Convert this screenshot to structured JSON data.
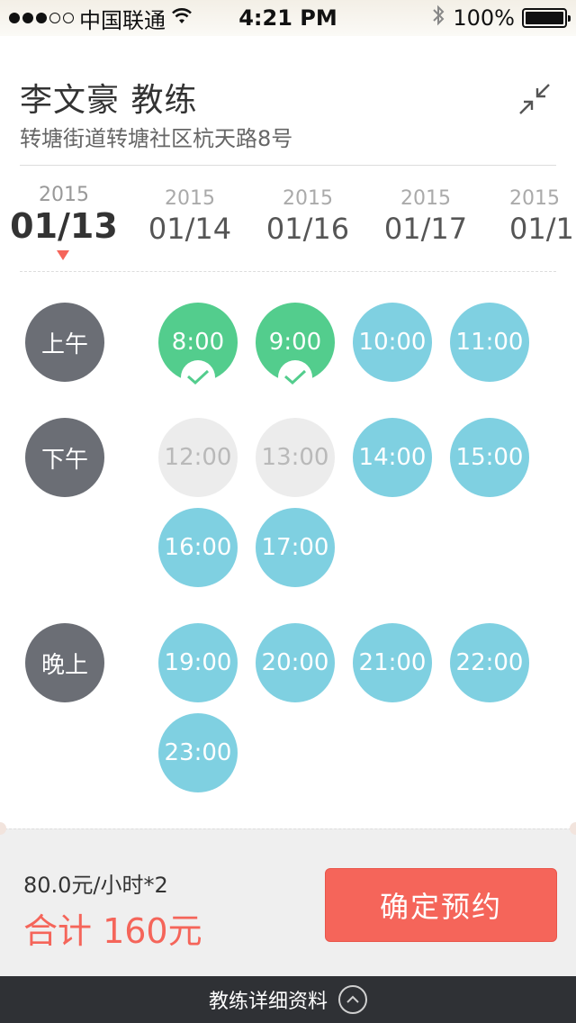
{
  "status_bar": {
    "carrier": "中国联通",
    "signal_filled": 3,
    "signal_empty": 2,
    "time": "4:21 PM",
    "battery": "100%"
  },
  "header": {
    "coach_name": "李文豪 教练",
    "address": "转塘街道转塘社区杭天路8号"
  },
  "dates": [
    {
      "year": "2015",
      "md": "01/13",
      "selected": true
    },
    {
      "year": "2015",
      "md": "01/14"
    },
    {
      "year": "2015",
      "md": "01/16"
    },
    {
      "year": "2015",
      "md": "01/17"
    },
    {
      "year": "2015",
      "md": "01/1"
    }
  ],
  "periods": {
    "morning": "上午",
    "afternoon": "下午",
    "evening": "晚上"
  },
  "slots": {
    "morning": [
      {
        "time": "8:00",
        "state": "selected"
      },
      {
        "time": "9:00",
        "state": "selected"
      },
      {
        "time": "10:00",
        "state": "available"
      },
      {
        "time": "11:00",
        "state": "available"
      }
    ],
    "afternoon": [
      {
        "time": "12:00",
        "state": "disabled"
      },
      {
        "time": "13:00",
        "state": "disabled"
      },
      {
        "time": "14:00",
        "state": "available"
      },
      {
        "time": "15:00",
        "state": "available"
      },
      {
        "time": "16:00",
        "state": "available"
      },
      {
        "time": "17:00",
        "state": "available"
      }
    ],
    "evening": [
      {
        "time": "19:00",
        "state": "available"
      },
      {
        "time": "20:00",
        "state": "available"
      },
      {
        "time": "21:00",
        "state": "available"
      },
      {
        "time": "22:00",
        "state": "available"
      },
      {
        "time": "23:00",
        "state": "available"
      }
    ]
  },
  "summary": {
    "price_detail": "80.0元/小时*2",
    "total": "合计 160元",
    "confirm_label": "确定预约"
  },
  "bottom_bar": {
    "label": "教练详细资料"
  },
  "colors": {
    "accent_red": "#f5655a",
    "available": "#7fd0e1",
    "selected": "#53cd8d",
    "disabled": "#ececec",
    "period": "#6b6e75",
    "bottom_bar": "#2f3135"
  }
}
